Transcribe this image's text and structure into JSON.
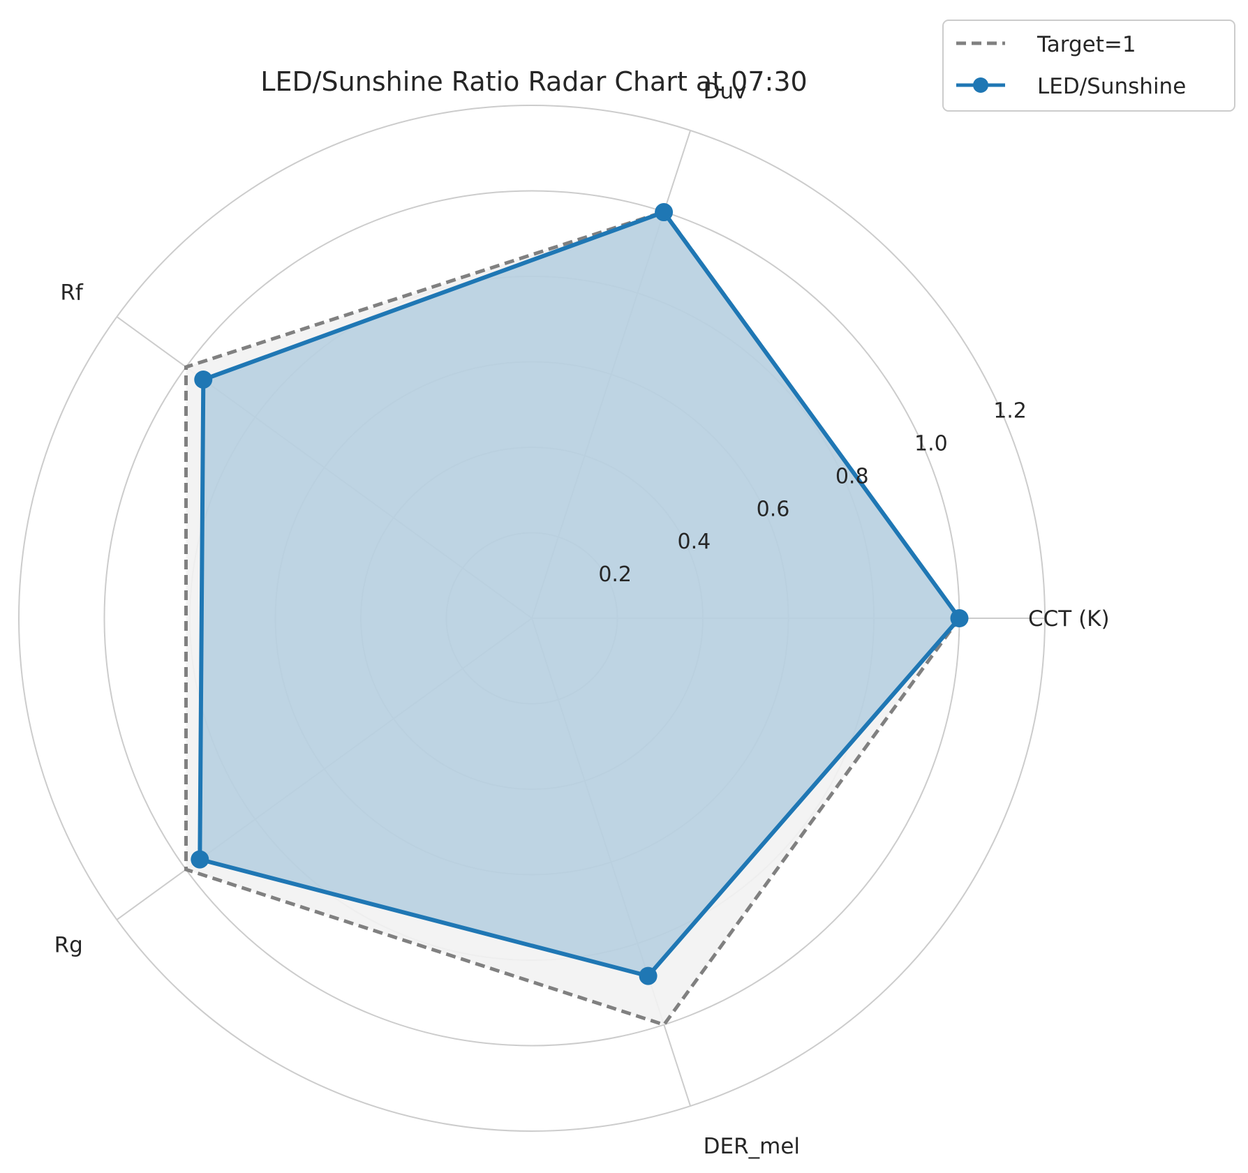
{
  "chart_data": {
    "type": "radar",
    "title": "LED/Sunshine Ratio Radar Chart at 07:30",
    "categories": [
      "CCT (K)",
      "Duv",
      "Rf",
      "Rg",
      "DER_mel"
    ],
    "rlim": [
      0,
      1.2
    ],
    "rticks": [
      0.2,
      0.4,
      0.6,
      0.8,
      1.0,
      1.2
    ],
    "rtick_labels": [
      "0.2",
      "0.4",
      "0.6",
      "0.8",
      "1.0",
      "1.2"
    ],
    "grid": true,
    "legend_position": "top-right",
    "series": [
      {
        "name": "Target=1",
        "values": [
          1,
          1,
          1,
          1,
          1
        ],
        "color": "#808080",
        "style": "dashed",
        "fill": "#f2f2f2"
      },
      {
        "name": "LED/Sunshine",
        "values": [
          1.0,
          0.999,
          0.95,
          0.96,
          0.88
        ],
        "color": "#1f77b4",
        "style": "solid-markers",
        "fill": "#1f77b4"
      }
    ]
  }
}
